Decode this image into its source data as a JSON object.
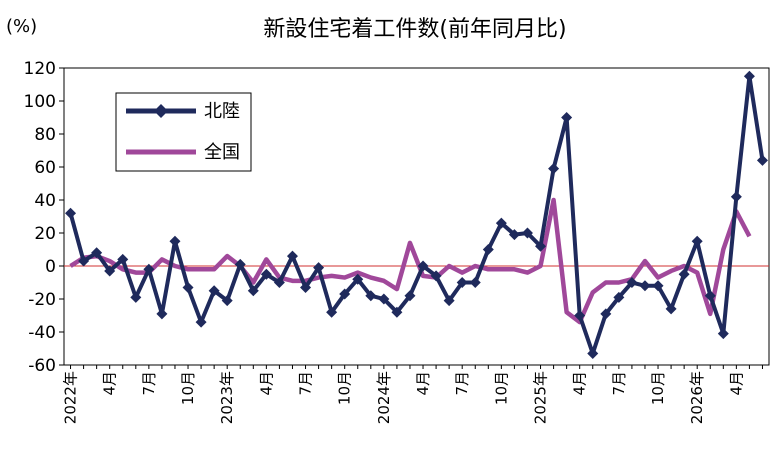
{
  "chart_data": {
    "type": "line",
    "title": "新設住宅着工件数(前年同月比)",
    "unit_label": "(%)",
    "ylim": [
      -60,
      120
    ],
    "yticks": [
      120,
      100,
      80,
      60,
      40,
      20,
      0,
      -20,
      -40,
      -60
    ],
    "x_tick_labels": [
      "2022年",
      "4月",
      "7月",
      "10月",
      "2023年",
      "4月",
      "7月",
      "10月",
      "2024年",
      "4月",
      "7月",
      "10月",
      "2025年",
      "4月",
      "7月",
      "10月",
      "2026年",
      "4月"
    ],
    "legend": {
      "placement": "top-left"
    },
    "series": [
      {
        "name": "北陸",
        "color": "#1f2a5c",
        "marker": "diamond",
        "values": [
          32,
          3,
          8,
          -3,
          4,
          -19,
          -2,
          -29,
          15,
          -13,
          -34,
          -15,
          -21,
          1,
          -15,
          -5,
          -10,
          6,
          -13,
          -1,
          -28,
          -17,
          -8,
          -18,
          -20,
          -28,
          -18,
          0,
          -6,
          -21,
          -10,
          -10,
          10,
          26,
          19,
          20,
          12,
          59,
          90,
          -30,
          -53,
          -29,
          -19,
          -10,
          -12,
          -12,
          -26,
          -5,
          15,
          -18,
          -41,
          42,
          115,
          64
        ]
      },
      {
        "name": "全国",
        "color": "#a0489a",
        "values": [
          0,
          5,
          6,
          3,
          -2,
          -4,
          -4,
          4,
          0,
          -2,
          -2,
          -2,
          6,
          0,
          -10,
          4,
          -7,
          -9,
          -9,
          -7,
          -6,
          -7,
          -4,
          -7,
          -9,
          -14,
          14,
          -6,
          -7,
          0,
          -4,
          0,
          -2,
          -2,
          -2,
          -4,
          0,
          40,
          -28,
          -34,
          -16,
          -10,
          -10,
          -8,
          3,
          -7,
          -3,
          0,
          -4,
          -29,
          10,
          33,
          18
        ]
      }
    ]
  }
}
